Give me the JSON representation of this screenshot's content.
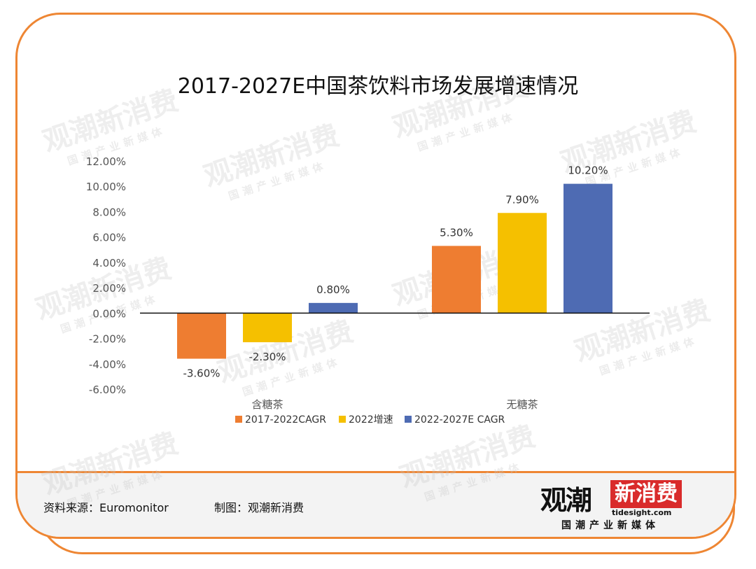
{
  "title": "2017-2027E中国茶饮料市场发展增速情况",
  "watermark": {
    "main": "观潮新消费",
    "sub": "国潮产业新媒体",
    "domain": "tidesight.com"
  },
  "footer": {
    "source": "资料来源：Euromonitor",
    "maker": "制图：观潮新消费"
  },
  "logo": {
    "main_left": "观潮",
    "main_right": "新消费",
    "domain": "tidesight.com",
    "sub": "国潮产业新媒体",
    "accent_color": "#D92B2B"
  },
  "chart_data": {
    "type": "bar",
    "categories": [
      "含糖茶",
      "无糖茶"
    ],
    "series": [
      {
        "name": "2017-2022CAGR",
        "values": [
          -3.6,
          5.3
        ],
        "labels": [
          "-3.60%",
          "5.30%"
        ],
        "color": "#EE7D31"
      },
      {
        "name": "2022增速",
        "values": [
          -2.3,
          7.9
        ],
        "labels": [
          "-2.30%",
          "7.90%"
        ],
        "color": "#F5C000"
      },
      {
        "name": "2022-2027E CAGR",
        "values": [
          0.8,
          10.2
        ],
        "labels": [
          "0.80%",
          "10.20%"
        ],
        "color": "#4E6BB3"
      }
    ],
    "yticks": [
      "12.00%",
      "10.00%",
      "8.00%",
      "6.00%",
      "4.00%",
      "2.00%",
      "0.00%",
      "-2.00%",
      "-4.00%",
      "-6.00%"
    ],
    "ytick_values": [
      12,
      10,
      8,
      6,
      4,
      2,
      0,
      -2,
      -4,
      -6
    ],
    "ylim": [
      -6,
      12
    ],
    "grid": false,
    "legend": "bottom",
    "xlabel": "",
    "ylabel": ""
  }
}
